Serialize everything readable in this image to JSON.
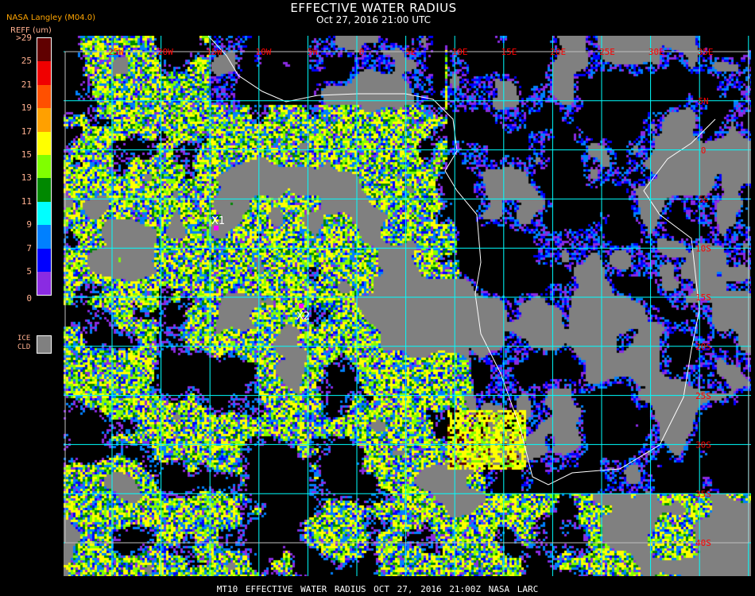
{
  "header": {
    "title": "EFFECTIVE WATER RADIUS",
    "subtitle": "Oct 27, 2016 21:00 UTC",
    "org": "NASA Langley (M04.0)",
    "units": "REFF (um)"
  },
  "legend": {
    "labels": [
      ">29",
      "25",
      "21",
      "19",
      "17",
      "15",
      "13",
      "11",
      "9",
      "7",
      "5",
      "0"
    ],
    "colors": [
      "#600000",
      "#f00000",
      "#ff5000",
      "#ffa000",
      "#ffff00",
      "#80ff00",
      "#008800",
      "#00ffff",
      "#0080ff",
      "#0000ff",
      "#8a2be2"
    ],
    "ice_label": "ICE CLD",
    "ice_color": "#808080"
  },
  "map": {
    "lon_labels": [
      "25W",
      "20W",
      "15W",
      "10W",
      "5W",
      "0",
      "5E",
      "10E",
      "15E",
      "20E",
      "25E",
      "30E",
      "35E"
    ],
    "lat_labels": [
      "5N",
      "0",
      "5S",
      "10S",
      "15S",
      "20S",
      "25S",
      "30S",
      "35S",
      "40S"
    ],
    "grid_color": "#00ffff",
    "label_color": "#ff0000",
    "coast_color": "#ffffff",
    "markers": [
      {
        "label": "X1",
        "color": "#ff00ff"
      },
      {
        "label": "X2",
        "color": "#ff00ff"
      }
    ]
  },
  "caption": "MT10   EFFECTIVE WATER RADIUS   OCT 27, 2016 21:00Z   NASA LARC"
}
